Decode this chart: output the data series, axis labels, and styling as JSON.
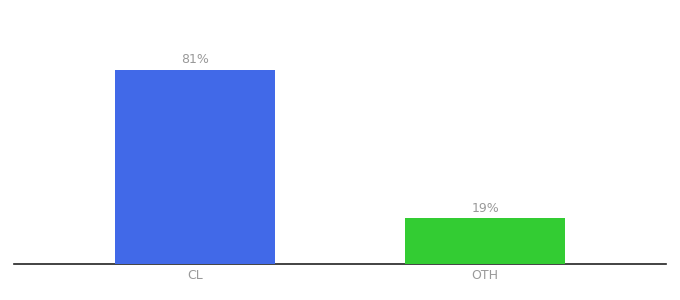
{
  "categories": [
    "CL",
    "OTH"
  ],
  "values": [
    81,
    19
  ],
  "bar_colors": [
    "#4169e8",
    "#33cc33"
  ],
  "label_texts": [
    "81%",
    "19%"
  ],
  "background_color": "#ffffff",
  "ylim": [
    0,
    100
  ],
  "bar_width": 0.22,
  "label_color": "#999999",
  "label_fontsize": 9,
  "tick_fontsize": 9,
  "tick_color": "#999999",
  "x_positions": [
    0.3,
    0.7
  ]
}
